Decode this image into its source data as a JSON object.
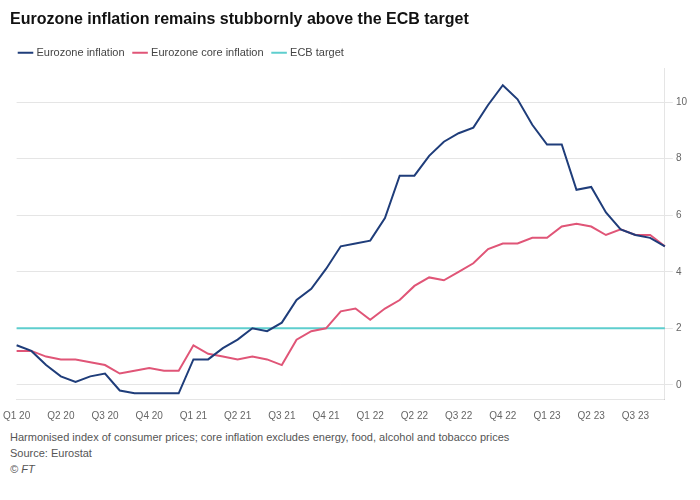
{
  "chart_data": {
    "type": "line",
    "title": "Eurozone inflation remains stubbornly above the ECB target",
    "categories": [
      "Q1 20",
      null,
      null,
      "Q2 20",
      null,
      null,
      "Q3 20",
      null,
      null,
      "Q4 20",
      null,
      null,
      "Q1 21",
      null,
      null,
      "Q2 21",
      null,
      null,
      "Q3 21",
      null,
      null,
      "Q4 21",
      null,
      null,
      "Q1 22",
      null,
      null,
      "Q2 22",
      null,
      null,
      "Q3 22",
      null,
      null,
      "Q4 22",
      null,
      null,
      "Q1 23",
      null,
      null,
      "Q2 23",
      null,
      null,
      "Q3 23",
      null,
      null
    ],
    "series": [
      {
        "name": "Eurozone inflation",
        "color": "#1f3d7a",
        "values": [
          1.4,
          1.2,
          0.7,
          0.3,
          0.1,
          0.3,
          0.4,
          -0.2,
          -0.3,
          -0.3,
          -0.3,
          -0.3,
          0.9,
          0.9,
          1.3,
          1.6,
          2.0,
          1.9,
          2.2,
          3.0,
          3.4,
          4.1,
          4.9,
          5.0,
          5.1,
          5.9,
          7.4,
          7.4,
          8.1,
          8.6,
          8.9,
          9.1,
          9.9,
          10.6,
          10.1,
          9.2,
          8.5,
          8.5,
          6.9,
          7.0,
          6.1,
          5.5,
          5.3,
          5.2,
          4.9
        ]
      },
      {
        "name": "Eurozone core inflation",
        "color": "#e05577",
        "values": [
          1.2,
          1.2,
          1.0,
          0.9,
          0.9,
          0.8,
          0.7,
          0.4,
          0.5,
          0.6,
          0.5,
          0.5,
          1.4,
          1.1,
          1.0,
          0.9,
          1.0,
          0.9,
          0.7,
          1.6,
          1.9,
          2.0,
          2.6,
          2.7,
          2.3,
          2.7,
          3.0,
          3.5,
          3.8,
          3.7,
          4.0,
          4.3,
          4.8,
          5.0,
          5.0,
          5.2,
          5.2,
          5.6,
          5.7,
          5.6,
          5.3,
          5.5,
          5.3,
          5.3,
          4.9
        ]
      },
      {
        "name": "ECB target",
        "color": "#5ecece",
        "values": [
          2.0,
          2.0,
          2.0,
          2.0,
          2.0,
          2.0,
          2.0,
          2.0,
          2.0,
          2.0,
          2.0,
          2.0,
          2.0,
          2.0,
          2.0,
          2.0,
          2.0,
          2.0,
          2.0,
          2.0,
          2.0,
          2.0,
          2.0,
          2.0,
          2.0,
          2.0,
          2.0,
          2.0,
          2.0,
          2.0,
          2.0,
          2.0,
          2.0,
          2.0,
          2.0,
          2.0,
          2.0,
          2.0,
          2.0,
          2.0,
          2.0,
          2.0,
          2.0,
          2.0,
          2.0
        ]
      }
    ],
    "ylim": [
      -0.5,
      11.2
    ],
    "yticks": [
      0,
      2,
      4,
      6,
      8,
      10
    ],
    "grid": true,
    "legend": "upper left",
    "footnotes": [
      "Harmonised index of consumer prices; core inflation excludes energy, food, alcohol and tobacco prices",
      "Source: Eurostat",
      "© FT"
    ]
  }
}
